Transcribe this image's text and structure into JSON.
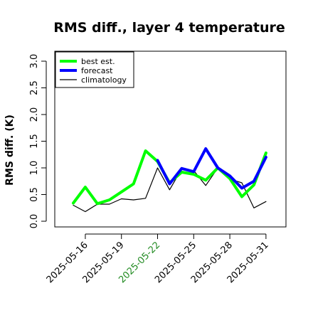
{
  "chart_data": {
    "type": "line",
    "title": "RMS diff., layer 4 temperature",
    "ylabel": "RMS diff. (K)",
    "xlabel": "",
    "ylim": [
      0,
      3.0
    ],
    "yticks": [
      0.0,
      0.5,
      1.0,
      1.5,
      2.0,
      2.5,
      3.0
    ],
    "ytick_labels": [
      "0.0",
      "0.5",
      "1.0",
      "1.5",
      "2.0",
      "2.5",
      "3.0"
    ],
    "x": [
      "2025-05-15",
      "2025-05-16",
      "2025-05-17",
      "2025-05-18",
      "2025-05-19",
      "2025-05-20",
      "2025-05-21",
      "2025-05-22",
      "2025-05-23",
      "2025-05-24",
      "2025-05-25",
      "2025-05-26",
      "2025-05-27",
      "2025-05-28",
      "2025-05-29",
      "2025-05-30",
      "2025-05-31"
    ],
    "xtick_labels": [
      {
        "label": "2025-05-16",
        "color": "#000000"
      },
      {
        "label": "2025-05-19",
        "color": "#000000"
      },
      {
        "label": "2025-05-22",
        "color": "#228B22"
      },
      {
        "label": "2025-05-25",
        "color": "#000000"
      },
      {
        "label": "2025-05-28",
        "color": "#000000"
      },
      {
        "label": "2025-05-31",
        "color": "#000000"
      }
    ],
    "legend_position": "top-left",
    "grid": false,
    "series": [
      {
        "name": "best est.",
        "color": "#00ff00",
        "values": [
          0.34,
          0.64,
          0.33,
          0.4,
          0.55,
          0.7,
          1.32,
          1.12,
          0.72,
          0.92,
          0.88,
          0.77,
          1.0,
          0.8,
          0.46,
          0.68,
          1.28
        ]
      },
      {
        "name": "forecast",
        "color": "#0000ff",
        "values": [
          null,
          null,
          null,
          null,
          null,
          null,
          null,
          1.14,
          0.7,
          0.99,
          0.93,
          1.36,
          1.0,
          0.85,
          0.62,
          0.75,
          1.2
        ]
      },
      {
        "name": "climatology",
        "color": "#000000",
        "values": [
          0.3,
          0.18,
          0.32,
          0.32,
          0.42,
          0.4,
          0.43,
          1.0,
          0.59,
          0.98,
          0.95,
          0.67,
          1.0,
          0.79,
          0.72,
          0.25,
          0.37
        ]
      }
    ]
  }
}
